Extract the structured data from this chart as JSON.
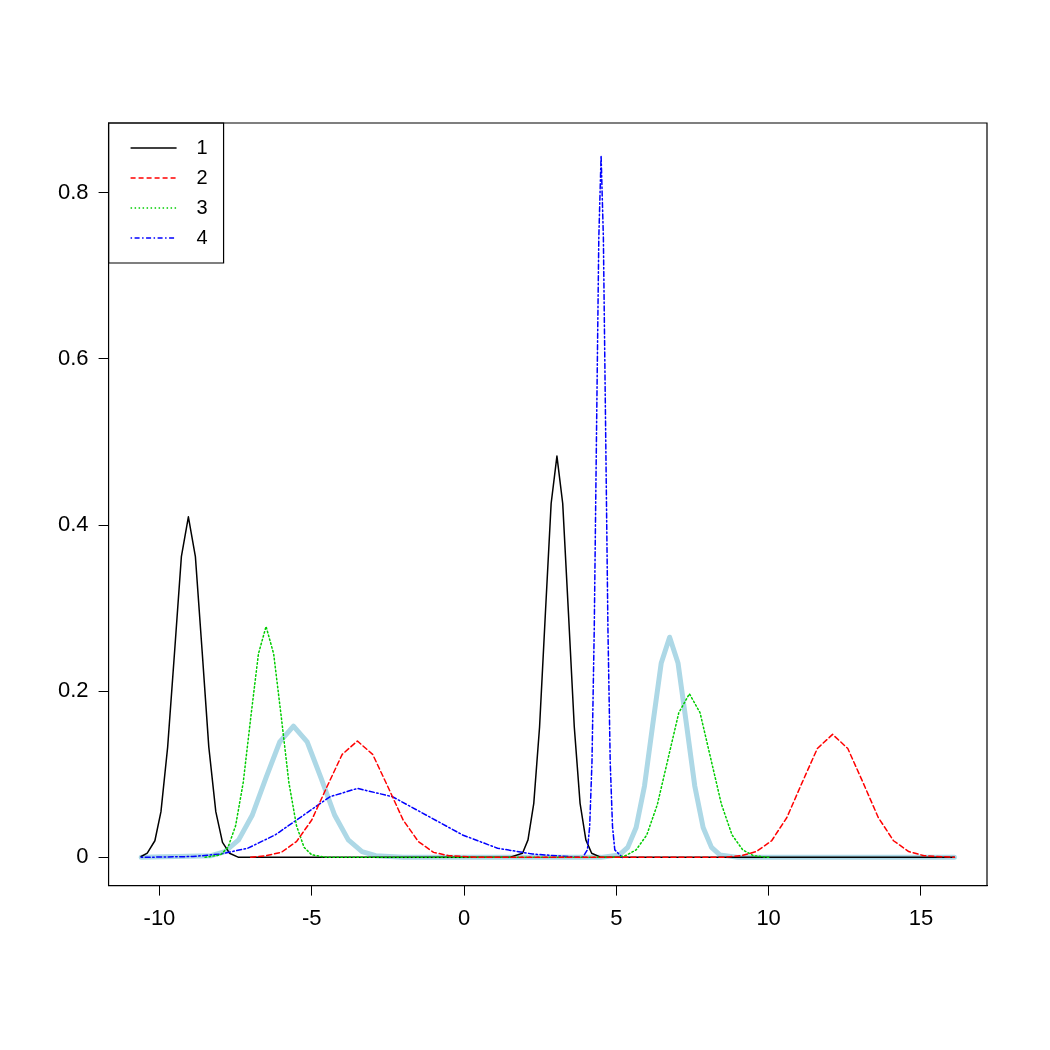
{
  "chart_data": {
    "type": "line",
    "xlim": [
      -11.67,
      17.17
    ],
    "ylim": [
      -0.034,
      0.884
    ],
    "xticks": [
      -10,
      -5,
      0,
      5,
      10,
      15
    ],
    "yticks": [
      0,
      0.2,
      0.4,
      0.6,
      0.8
    ],
    "grid": false,
    "legend": "top left",
    "series": [
      {
        "name": "1",
        "color": "#000000",
        "line_style": "solid",
        "x": [
          -10.6,
          -10.4,
          -10.15,
          -9.95,
          -9.73,
          -9.5,
          -9.28,
          -9.05,
          -8.82,
          -8.6,
          -8.38,
          -8.15,
          -7.93,
          -7.7,
          -7.4,
          1.5,
          1.92,
          2.1,
          2.29,
          2.48,
          2.67,
          2.86,
          3.05,
          3.24,
          3.43,
          3.62,
          3.81,
          4.0,
          4.19,
          4.5,
          16.1
        ],
        "values": [
          0.001,
          0.005,
          0.02,
          0.055,
          0.133,
          0.249,
          0.362,
          0.41,
          0.362,
          0.249,
          0.133,
          0.055,
          0.018,
          0.005,
          0,
          0,
          0.005,
          0.021,
          0.065,
          0.157,
          0.293,
          0.426,
          0.483,
          0.426,
          0.293,
          0.157,
          0.065,
          0.021,
          0.005,
          0,
          0
        ]
      },
      {
        "name": "2",
        "color": "#ff0000",
        "line_style": "dashed",
        "x": [
          -7,
          -6.5,
          -6,
          -5.5,
          -5,
          -4.5,
          -4,
          -3.5,
          -3,
          -2.5,
          -2,
          -1.5,
          -1,
          -0.5,
          0.5,
          8.5,
          9.1,
          9.6,
          10.1,
          10.6,
          11.1,
          11.6,
          12.1,
          12.6,
          13.1,
          13.6,
          14.1,
          14.6,
          15.1,
          16.1
        ],
        "values": [
          0,
          0.002,
          0.006,
          0.019,
          0.045,
          0.085,
          0.124,
          0.14,
          0.124,
          0.085,
          0.045,
          0.019,
          0.006,
          0.002,
          0,
          0,
          0.002,
          0.007,
          0.02,
          0.048,
          0.09,
          0.131,
          0.148,
          0.131,
          0.09,
          0.048,
          0.02,
          0.007,
          0.002,
          0
        ]
      },
      {
        "name": "3",
        "color": "#00cd00",
        "line_style": "dotted",
        "x": [
          -8.5,
          -8,
          -7.75,
          -7.5,
          -7.25,
          -7,
          -6.75,
          -6.5,
          -6.25,
          -6,
          -5.75,
          -5.5,
          -5.25,
          -5,
          -4.5,
          5,
          5.3,
          5.65,
          6,
          6.35,
          6.7,
          7.05,
          7.4,
          7.75,
          8.1,
          8.45,
          8.8,
          9.15,
          9.5,
          10
        ],
        "values": [
          0,
          0.003,
          0.012,
          0.038,
          0.09,
          0.169,
          0.245,
          0.278,
          0.245,
          0.169,
          0.09,
          0.038,
          0.012,
          0.003,
          0,
          0,
          0.002,
          0.009,
          0.027,
          0.064,
          0.119,
          0.174,
          0.197,
          0.174,
          0.119,
          0.064,
          0.027,
          0.009,
          0.002,
          0
        ]
      },
      {
        "name": "4",
        "color": "#0000ff",
        "line_style": "dashdot",
        "x": [
          -10.6,
          -8.9,
          -8,
          -7.1,
          -6.2,
          -5.3,
          -4.4,
          -3.5,
          -2.35,
          -1.2,
          -0.05,
          1.1,
          2.25,
          3.4,
          3.9,
          4.05,
          4.125,
          4.2,
          4.275,
          4.35,
          4.425,
          4.5,
          4.575,
          4.65,
          4.725,
          4.8,
          4.875,
          4.95,
          5.2
        ],
        "values": [
          0,
          0.001,
          0.004,
          0.011,
          0.027,
          0.05,
          0.073,
          0.083,
          0.073,
          0.05,
          0.027,
          0.011,
          0.004,
          0.001,
          0,
          0.009,
          0.037,
          0.114,
          0.274,
          0.512,
          0.746,
          0.845,
          0.746,
          0.512,
          0.274,
          0.114,
          0.037,
          0.009,
          0
        ]
      },
      {
        "color": "#add8e6",
        "line_style": "solid",
        "x": [
          -10.6,
          -8.3,
          -7.85,
          -7.4,
          -6.95,
          -6.5,
          -6.05,
          -5.6,
          -5.15,
          -4.7,
          -4.25,
          -3.8,
          -3.35,
          -2.9,
          -2,
          4.5,
          5.1,
          5.375,
          5.65,
          5.925,
          6.2,
          6.475,
          6.75,
          7.025,
          7.3,
          7.575,
          7.85,
          8.125,
          8.4,
          9,
          16.1
        ],
        "values": [
          0,
          0.002,
          0.007,
          0.021,
          0.051,
          0.096,
          0.139,
          0.158,
          0.139,
          0.096,
          0.051,
          0.021,
          0.007,
          0.002,
          0,
          0,
          0.003,
          0.012,
          0.036,
          0.086,
          0.161,
          0.234,
          0.265,
          0.234,
          0.161,
          0.086,
          0.036,
          0.012,
          0.003,
          0,
          0
        ]
      }
    ]
  }
}
